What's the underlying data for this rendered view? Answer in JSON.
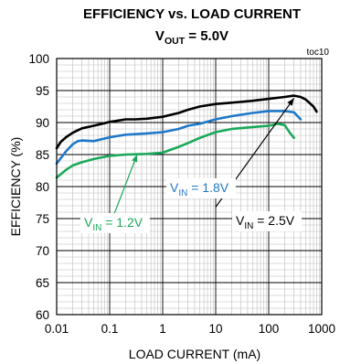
{
  "chart_data": {
    "type": "line",
    "title": "EFFICIENCY vs. LOAD CURRENT",
    "subtitle": {
      "main": "V",
      "sub": "OUT",
      "rest": " = 5.0V"
    },
    "tag": "toc10",
    "xlabel": "LOAD CURRENT (mA)",
    "ylabel": "EFFICIENCY (%)",
    "xscale": "log",
    "xlim": [
      0.01,
      1000
    ],
    "ylim": [
      60,
      100
    ],
    "grid": true,
    "xticks": [
      {
        "v": 0.01,
        "label": "0.01"
      },
      {
        "v": 0.1,
        "label": "0.1"
      },
      {
        "v": 1,
        "label": "1"
      },
      {
        "v": 10,
        "label": "10"
      },
      {
        "v": 100,
        "label": "100"
      },
      {
        "v": 1000,
        "label": "1000"
      }
    ],
    "yticks": [
      {
        "v": 60,
        "label": "60"
      },
      {
        "v": 65,
        "label": "65"
      },
      {
        "v": 70,
        "label": "70"
      },
      {
        "v": 75,
        "label": "75"
      },
      {
        "v": 80,
        "label": "80"
      },
      {
        "v": 85,
        "label": "85"
      },
      {
        "v": 90,
        "label": "90"
      },
      {
        "v": 95,
        "label": "95"
      },
      {
        "v": 100,
        "label": "100"
      }
    ],
    "series": [
      {
        "color": "#000000",
        "label": {
          "main": "V",
          "sub": "IN",
          "rest": " = 2.5V"
        },
        "points": [
          [
            0.01,
            86
          ],
          [
            0.012,
            87
          ],
          [
            0.015,
            87.7
          ],
          [
            0.02,
            88.4
          ],
          [
            0.025,
            88.8
          ],
          [
            0.03,
            89.1
          ],
          [
            0.05,
            89.5
          ],
          [
            0.08,
            89.9
          ],
          [
            0.1,
            90.1
          ],
          [
            0.2,
            90.5
          ],
          [
            0.3,
            90.5
          ],
          [
            0.5,
            90.6
          ],
          [
            1,
            90.9
          ],
          [
            2,
            91.5
          ],
          [
            3,
            92
          ],
          [
            5,
            92.5
          ],
          [
            10,
            92.9
          ],
          [
            20,
            93.1
          ],
          [
            50,
            93.4
          ],
          [
            100,
            93.7
          ],
          [
            200,
            94.0
          ],
          [
            300,
            94.2
          ],
          [
            400,
            94.0
          ],
          [
            500,
            93.6
          ],
          [
            700,
            92.5
          ],
          [
            800,
            91.7
          ]
        ],
        "arrow_from": [
          10,
          76.8
        ],
        "arrow_to": [
          300,
          93.8
        ]
      },
      {
        "color": "#1f78c8",
        "label": {
          "main": "V",
          "sub": "IN",
          "rest": " = 1.8V"
        },
        "points": [
          [
            0.01,
            83.6
          ],
          [
            0.015,
            85.5
          ],
          [
            0.02,
            86.6
          ],
          [
            0.025,
            87.1
          ],
          [
            0.03,
            87.2
          ],
          [
            0.05,
            87.1
          ],
          [
            0.1,
            87.7
          ],
          [
            0.2,
            88.1
          ],
          [
            0.5,
            88.3
          ],
          [
            1,
            88.5
          ],
          [
            2,
            89
          ],
          [
            3,
            89.5
          ],
          [
            5,
            89.8
          ],
          [
            10,
            90.5
          ],
          [
            20,
            91
          ],
          [
            50,
            91.5
          ],
          [
            100,
            91.8
          ],
          [
            200,
            91.8
          ],
          [
            300,
            91.6
          ],
          [
            400,
            90.5
          ]
        ],
        "arrow_from": null,
        "arrow_to": null
      },
      {
        "color": "#1aa85a",
        "label": {
          "main": "V",
          "sub": "IN",
          "rest": " = 1.2V"
        },
        "points": [
          [
            0.01,
            81.4
          ],
          [
            0.015,
            82.6
          ],
          [
            0.02,
            83.3
          ],
          [
            0.03,
            83.8
          ],
          [
            0.05,
            84.3
          ],
          [
            0.1,
            84.8
          ],
          [
            0.2,
            85
          ],
          [
            0.5,
            85.1
          ],
          [
            1,
            85.3
          ],
          [
            2,
            86.2
          ],
          [
            3,
            86.8
          ],
          [
            5,
            87.6
          ],
          [
            10,
            88.5
          ],
          [
            20,
            89
          ],
          [
            50,
            89.3
          ],
          [
            100,
            89.5
          ],
          [
            150,
            89.8
          ],
          [
            200,
            89.6
          ],
          [
            250,
            88.4
          ],
          [
            300,
            87.6
          ]
        ],
        "arrow_from": [
          0.12,
          75.6
        ],
        "arrow_to": [
          0.33,
          85.0
        ]
      }
    ]
  }
}
